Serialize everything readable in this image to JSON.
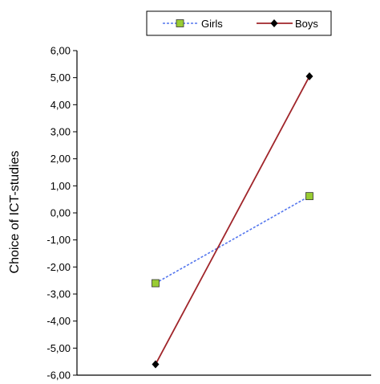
{
  "chart_data": {
    "type": "line",
    "title": "",
    "xlabel": "",
    "ylabel": "Choice of ICT-studies",
    "ylim": [
      -6,
      6
    ],
    "y_ticks": [
      "6,00",
      "5,00",
      "4,00",
      "3,00",
      "2,00",
      "1,00",
      "0,00",
      "-1,00",
      "-2,00",
      "-3,00",
      "-4,00",
      "-5,00",
      "-6,00"
    ],
    "x_points": 2,
    "grid": false,
    "legend_position": "top-center",
    "series": [
      {
        "name": "Girls",
        "values": [
          -2.6,
          0.62
        ],
        "color": "#5577ee",
        "line_style": "dashed",
        "marker": "square",
        "marker_color": "#99cc33"
      },
      {
        "name": "Boys",
        "values": [
          -5.6,
          5.05
        ],
        "color": "#a0252a",
        "line_style": "solid",
        "marker": "diamond",
        "marker_color": "#000000"
      }
    ]
  }
}
